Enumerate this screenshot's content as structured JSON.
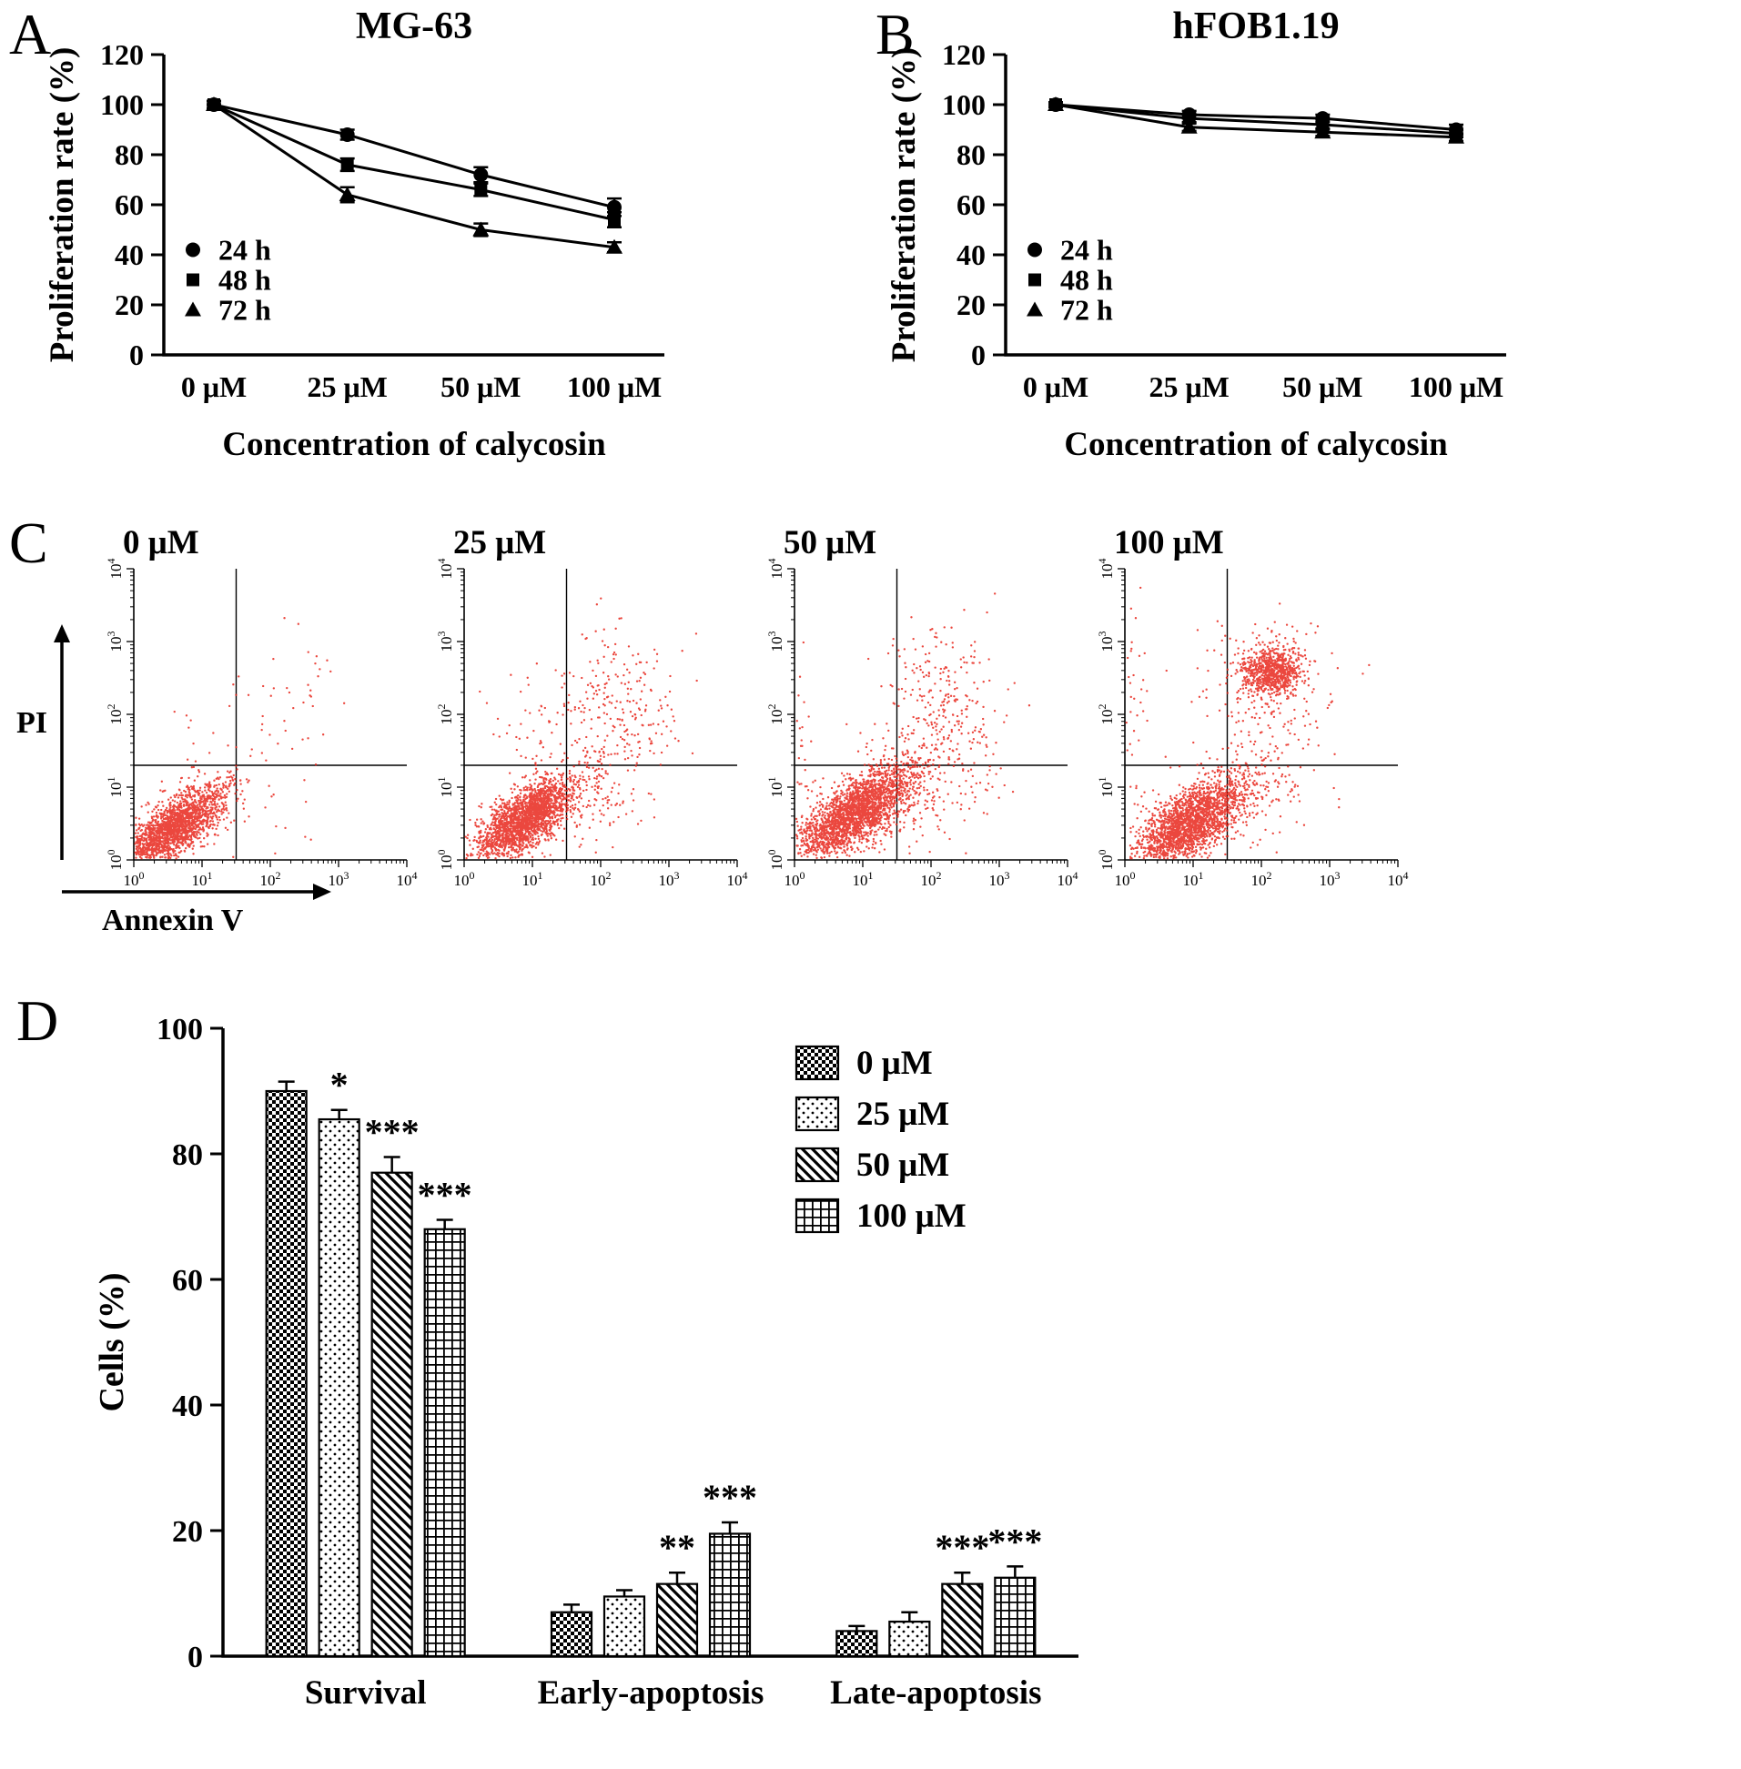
{
  "figure": {
    "panels": {
      "A": {
        "label": "A"
      },
      "B": {
        "label": "B"
      },
      "C": {
        "label": "C"
      },
      "D": {
        "label": "D"
      }
    }
  },
  "chart_data": [
    {
      "id": "panelA",
      "type": "line",
      "title": "MG-63",
      "xlabel": "Concentration of calycosin",
      "ylabel": "Proliferation rate (%)",
      "categories": [
        "0 μM",
        "25 μM",
        "50 μM",
        "100 μM"
      ],
      "ylim": [
        0,
        120
      ],
      "yticks": [
        0,
        20,
        40,
        60,
        80,
        100,
        120
      ],
      "grid": false,
      "legend_position": "inside-lower-left",
      "line_color": "#000000",
      "series": [
        {
          "name": "24 h",
          "marker": "circle",
          "values": [
            100,
            88,
            72,
            59
          ],
          "errors": [
            1.5,
            2,
            3,
            3.5
          ]
        },
        {
          "name": "48 h",
          "marker": "square",
          "values": [
            100,
            76,
            66,
            54
          ],
          "errors": [
            1.5,
            2.5,
            2.5,
            3
          ]
        },
        {
          "name": "72 h",
          "marker": "triangle",
          "values": [
            100,
            64,
            50,
            43
          ],
          "errors": [
            1.5,
            3,
            2.5,
            2
          ]
        }
      ]
    },
    {
      "id": "panelB",
      "type": "line",
      "title": "hFOB1.19",
      "xlabel": "Concentration of calycosin",
      "ylabel": "Proliferation rate (%)",
      "categories": [
        "0 μM",
        "25 μM",
        "50 μM",
        "100 μM"
      ],
      "ylim": [
        0,
        120
      ],
      "yticks": [
        0,
        20,
        40,
        60,
        80,
        100,
        120
      ],
      "grid": false,
      "legend_position": "inside-lower-left",
      "line_color": "#000000",
      "series": [
        {
          "name": "24 h",
          "marker": "circle",
          "values": [
            100,
            96,
            94.5,
            90
          ],
          "errors": [
            1,
            1.5,
            1.5,
            2
          ]
        },
        {
          "name": "48 h",
          "marker": "square",
          "values": [
            100,
            94.5,
            92,
            88.5
          ],
          "errors": [
            1,
            1.5,
            2,
            1.5
          ]
        },
        {
          "name": "72 h",
          "marker": "triangle",
          "values": [
            100,
            91,
            89,
            87
          ],
          "errors": [
            1,
            1.5,
            1.5,
            1.5
          ]
        }
      ]
    },
    {
      "id": "panelC",
      "type": "scatter",
      "subtype": "flow-cytometry-apoptosis",
      "xlabel": "Annexin V",
      "ylabel": "PI",
      "x_scale": "log10",
      "y_scale": "log10",
      "xlim_log": [
        0,
        4
      ],
      "ylim_log": [
        0,
        4
      ],
      "quadrant_x_log": 1.5,
      "quadrant_y_log": 1.3,
      "dot_color": "#e8271c",
      "plots": [
        {
          "title": "0 μM",
          "clusters": [
            {
              "cx": 0.55,
              "cy": 0.42,
              "sx": 0.4,
              "sy": 0.3,
              "corr": 0.75,
              "n": 2200
            },
            {
              "cx": 1.35,
              "cy": 1.1,
              "sx": 0.65,
              "sy": 0.75,
              "corr": 0.2,
              "n": 70
            },
            {
              "cx": 2.3,
              "cy": 2.5,
              "sx": 0.45,
              "sy": 0.4,
              "corr": 0,
              "n": 30
            }
          ]
        },
        {
          "title": "25 μM",
          "clusters": [
            {
              "cx": 0.88,
              "cy": 0.55,
              "sx": 0.36,
              "sy": 0.28,
              "corr": 0.7,
              "n": 2200
            },
            {
              "cx": 1.75,
              "cy": 0.95,
              "sx": 0.5,
              "sy": 0.45,
              "corr": 0.3,
              "n": 200
            },
            {
              "cx": 2.3,
              "cy": 2.2,
              "sx": 0.45,
              "sy": 0.5,
              "corr": 0,
              "n": 200
            },
            {
              "cx": 1.3,
              "cy": 1.7,
              "sx": 0.55,
              "sy": 0.55,
              "corr": 0,
              "n": 70
            }
          ]
        },
        {
          "title": "50 μM",
          "clusters": [
            {
              "cx": 0.9,
              "cy": 0.65,
              "sx": 0.42,
              "sy": 0.32,
              "corr": 0.7,
              "n": 2400
            },
            {
              "cx": 1.95,
              "cy": 1.05,
              "sx": 0.5,
              "sy": 0.45,
              "corr": 0.3,
              "n": 200
            },
            {
              "cx": 2.2,
              "cy": 2.2,
              "sx": 0.42,
              "sy": 0.5,
              "corr": 0,
              "n": 240
            },
            {
              "cx": 0.12,
              "cy": 1.1,
              "sx": 0.12,
              "sy": 0.7,
              "corr": 0,
              "n": 50
            }
          ]
        },
        {
          "title": "100 μM",
          "clusters": [
            {
              "cx": 0.95,
              "cy": 0.5,
              "sx": 0.4,
              "sy": 0.3,
              "corr": 0.65,
              "n": 2200
            },
            {
              "cx": 2.15,
              "cy": 2.6,
              "sx": 0.22,
              "sy": 0.17,
              "corr": 0,
              "n": 800
            },
            {
              "cx": 2.05,
              "cy": 2.3,
              "sx": 0.55,
              "sy": 0.55,
              "corr": 0,
              "n": 220
            },
            {
              "cx": 0.1,
              "cy": 1.9,
              "sx": 0.12,
              "sy": 0.85,
              "corr": 0,
              "n": 60
            },
            {
              "cx": 1.85,
              "cy": 0.85,
              "sx": 0.5,
              "sy": 0.4,
              "corr": 0.3,
              "n": 130
            }
          ]
        }
      ]
    },
    {
      "id": "panelD",
      "type": "bar",
      "title": "",
      "xlabel": "",
      "ylabel": "Cells (%)",
      "categories": [
        "Survival",
        "Early-apoptosis",
        "Late-apoptosis"
      ],
      "ylim": [
        0,
        100
      ],
      "yticks": [
        0,
        20,
        40,
        60,
        80,
        100
      ],
      "grid": false,
      "legend_position": "inside-upper-right",
      "series": [
        {
          "name": "0 μM",
          "pattern": "checker",
          "values": [
            90,
            7,
            4
          ],
          "errors": [
            1.5,
            1.2,
            0.8
          ],
          "sig": [
            "",
            "",
            ""
          ]
        },
        {
          "name": "25 μM",
          "pattern": "dots",
          "values": [
            85.5,
            9.5,
            5.5
          ],
          "errors": [
            1.5,
            1,
            1.5
          ],
          "sig": [
            "*",
            "",
            ""
          ]
        },
        {
          "name": "50 μM",
          "pattern": "diag",
          "values": [
            77,
            11.5,
            11.5
          ],
          "errors": [
            2.5,
            1.8,
            1.8
          ],
          "sig": [
            "***",
            "**",
            "***"
          ]
        },
        {
          "name": "100 μM",
          "pattern": "grid",
          "values": [
            68,
            19.5,
            12.5
          ],
          "errors": [
            1.5,
            1.8,
            1.8
          ],
          "sig": [
            "***",
            "***",
            "***"
          ]
        }
      ]
    }
  ]
}
